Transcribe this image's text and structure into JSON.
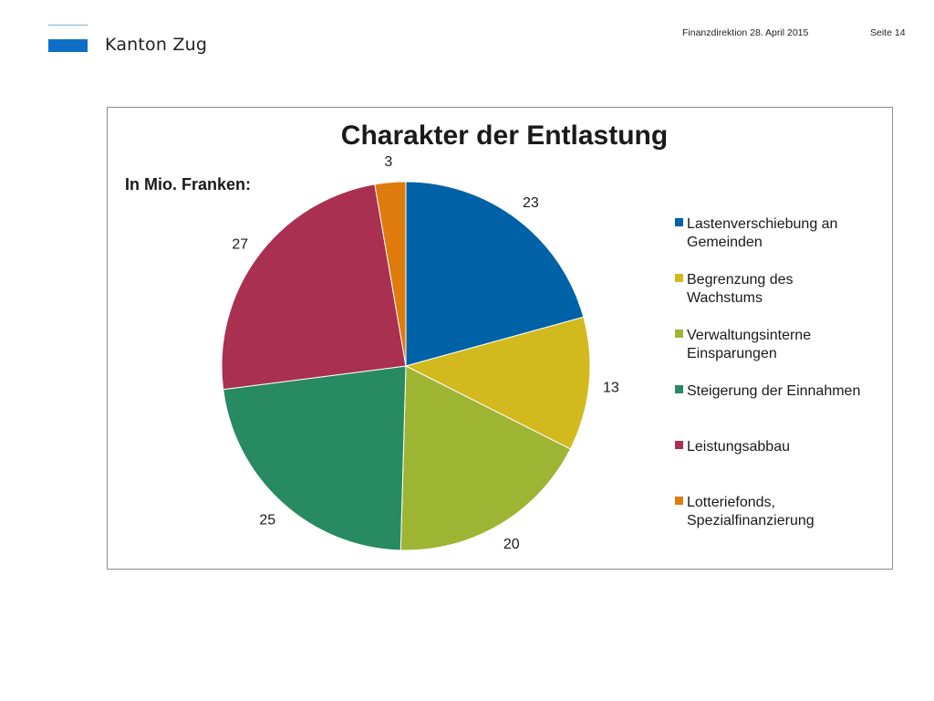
{
  "header": {
    "brand": "Kanton Zug",
    "meta": "Finanzdirektion  28. April 2015",
    "page": "Seite 14"
  },
  "chart_data": {
    "type": "pie",
    "title": "Charakter der Entlastung",
    "subtitle": "In Mio. Franken:",
    "legend_position": "right",
    "slices": [
      {
        "label": "Lastenverschiebung an Gemeinden",
        "legend_lines": [
          "Lastenverschiebung an",
          "Gemeinden"
        ],
        "value": 23,
        "color": "#0062a6"
      },
      {
        "label": "Begrenzung des Wachstums",
        "legend_lines": [
          "Begrenzung des",
          "Wachstums"
        ],
        "value": 13,
        "color": "#d2b91e"
      },
      {
        "label": "Verwaltungsinterne Einsparungen",
        "legend_lines": [
          "Verwaltungsinterne",
          "Einsparungen"
        ],
        "value": 20,
        "color": "#9db533"
      },
      {
        "label": "Steigerung der Einnahmen",
        "legend_lines": [
          "Steigerung der Einnahmen"
        ],
        "value": 25,
        "color": "#278a63"
      },
      {
        "label": "Leistungsabbau",
        "legend_lines": [
          "Leistungsabbau"
        ],
        "value": 27,
        "color": "#a93050"
      },
      {
        "label": "Lotteriefonds, Spezialfinanzierung",
        "legend_lines": [
          "Lotteriefonds,",
          "Spezialfinanzierung"
        ],
        "value": 3,
        "color": "#e07b0e"
      }
    ]
  }
}
